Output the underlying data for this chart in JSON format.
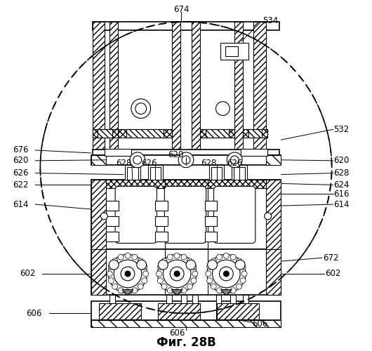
{
  "title": "Фиг. 28В",
  "bg_color": "#ffffff",
  "line_color": "#000000",
  "title_fontsize": 12,
  "label_fontsize": 8.5
}
